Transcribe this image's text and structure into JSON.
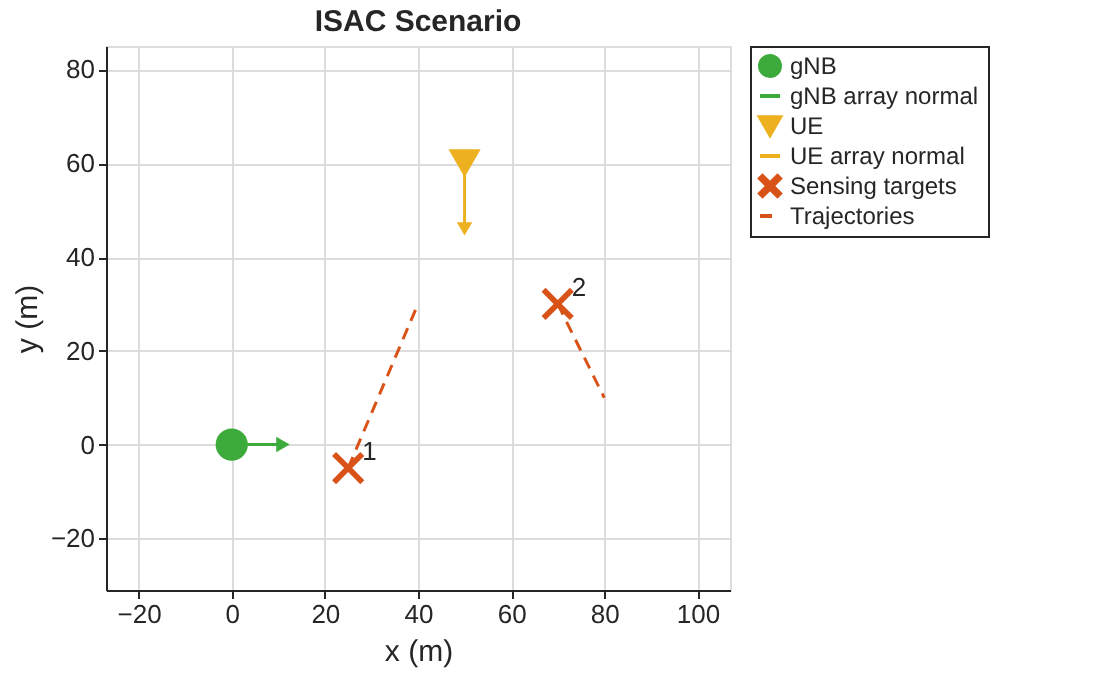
{
  "chart_data": {
    "type": "scatter",
    "title": "ISAC Scenario",
    "xlabel": "x (m)",
    "ylabel": "y (m)",
    "xlim": [
      -27,
      107
    ],
    "ylim": [
      -31,
      85
    ],
    "xticks": [
      -20,
      0,
      20,
      40,
      60,
      80,
      100
    ],
    "yticks": [
      -20,
      0,
      20,
      40,
      60,
      80
    ],
    "grid": true,
    "legend": "right",
    "series": [
      {
        "name": "gNB",
        "marker": "circle",
        "color": "#3cab3c",
        "x": [
          0
        ],
        "values": [
          0
        ]
      },
      {
        "name": "gNB array normal",
        "type": "line",
        "line_style": "solid",
        "color": "#3cab3c",
        "x": [
          0,
          11
        ],
        "values": [
          0,
          0
        ]
      },
      {
        "name": "UE",
        "marker": "triangle",
        "color": "#edb120",
        "x": [
          50
        ],
        "values": [
          60
        ]
      },
      {
        "name": "UE array normal",
        "type": "line",
        "line_style": "solid",
        "color": "#edb120",
        "x": [
          50,
          50
        ],
        "values": [
          60,
          46
        ]
      },
      {
        "name": "Sensing targets",
        "marker": "cross",
        "color": "#d95319",
        "x": [
          25,
          70
        ],
        "values": [
          -5,
          30
        ]
      },
      {
        "name": "Trajectories",
        "type": "line",
        "line_style": "dashed",
        "color": "#d95319",
        "x": [
          25,
          40,
          55,
          70,
          80
        ],
        "values": [
          -5,
          30,
          null,
          30,
          10
        ]
      }
    ],
    "annotations": [
      {
        "text": "1",
        "x": 25,
        "y": -5
      },
      {
        "text": "2",
        "x": 70,
        "y": 30
      }
    ]
  }
}
